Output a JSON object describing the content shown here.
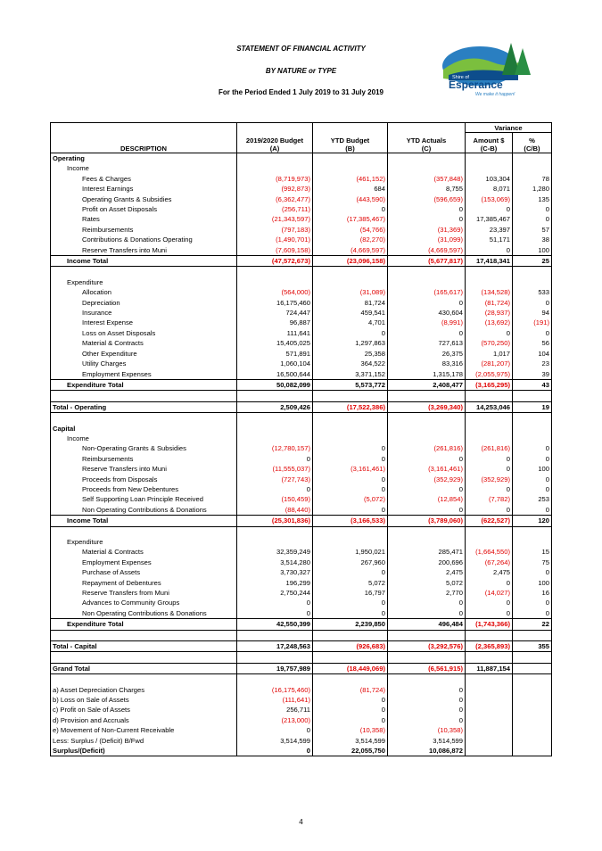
{
  "header": {
    "title": "STATEMENT OF FINANCIAL ACTIVITY",
    "subtitle": "BY NATURE or TYPE",
    "period": "For the Period Ended 1 July 2019 to 31 July 2019"
  },
  "logo": {
    "line1": "Shire of",
    "line2": "Esperance",
    "tagline": "We make it happen!"
  },
  "table": {
    "columns": {
      "variance": "Variance",
      "description": "DESCRIPTION",
      "budget": [
        "2019/2020 Budget",
        "(A)"
      ],
      "ytd_budget": [
        "YTD Budget",
        "(B)"
      ],
      "ytd_actuals": [
        "YTD Actuals",
        "(C)"
      ],
      "amount": [
        "Amount $",
        "(C-B)"
      ],
      "percent": [
        "%",
        "(C/B)"
      ]
    },
    "rows": [
      [
        "Operating"
      ],
      [
        "Income"
      ],
      [
        "Fees & Charges",
        "(8,719,973)",
        "(461,152)",
        "(357,848)",
        "103,304",
        "78"
      ],
      [
        "Interest Earnings",
        "(992,873)",
        "684",
        "8,755",
        "8,071",
        "1,280"
      ],
      [
        "Operating Grants & Subsidies",
        "(6,362,477)",
        "(443,590)",
        "(596,659)",
        "(153,069)",
        "135"
      ],
      [
        "Profit on Asset Disposals",
        "(256,711)",
        "0",
        "0",
        "0",
        "0"
      ],
      [
        "Rates",
        "(21,343,597)",
        "(17,385,467)",
        "0",
        "17,385,467",
        "0"
      ],
      [
        "Reimbursements",
        "(797,183)",
        "(54,766)",
        "(31,369)",
        "23,397",
        "57"
      ],
      [
        "Contributions & Donations Operating",
        "(1,490,701)",
        "(82,270)",
        "(31,099)",
        "51,171",
        "38"
      ],
      [
        "Reserve Transfers into Muni",
        "(7,609,158)",
        "(4,669,597)",
        "(4,669,597)",
        "0",
        "100"
      ],
      [
        "Income Total",
        "(47,572,673)",
        "(23,096,158)",
        "(5,677,817)",
        "17,418,341",
        "25"
      ],
      [
        "Expenditure"
      ],
      [
        "Allocation",
        "(564,000)",
        "(31,089)",
        "(165,617)",
        "(134,528)",
        "533"
      ],
      [
        "Depreciation",
        "16,175,460",
        "81,724",
        "0",
        "(81,724)",
        "0"
      ],
      [
        "Insurance",
        "724,447",
        "459,541",
        "430,604",
        "(28,937)",
        "94"
      ],
      [
        "Interest Expense",
        "96,887",
        "4,701",
        "(8,991)",
        "(13,692)",
        "(191)"
      ],
      [
        "Loss on Asset Disposals",
        "111,641",
        "0",
        "0",
        "0",
        "0"
      ],
      [
        "Material & Contracts",
        "15,405,025",
        "1,297,863",
        "727,613",
        "(570,250)",
        "56"
      ],
      [
        "Other Expenditure",
        "571,891",
        "25,358",
        "26,375",
        "1,017",
        "104"
      ],
      [
        "Utility Charges",
        "1,060,104",
        "364,522",
        "83,316",
        "(281,207)",
        "23"
      ],
      [
        "Employment Expenses",
        "16,500,644",
        "3,371,152",
        "1,315,178",
        "(2,055,975)",
        "39"
      ],
      [
        "Expenditure Total",
        "50,082,099",
        "5,573,772",
        "2,408,477",
        "(3,165,295)",
        "43"
      ],
      [
        "Total - Operating",
        "2,509,426",
        "(17,522,386)",
        "(3,269,340)",
        "14,253,046",
        "19"
      ],
      [
        "Capital"
      ],
      [
        "Income"
      ],
      [
        "Non-Operating Grants & Subsidies",
        "(12,780,157)",
        "0",
        "(261,816)",
        "(261,816)",
        "0"
      ],
      [
        "Reimbursements",
        "0",
        "0",
        "0",
        "0",
        "0"
      ],
      [
        "Reserve Transfers into Muni",
        "(11,555,037)",
        "(3,161,461)",
        "(3,161,461)",
        "0",
        "100"
      ],
      [
        "Proceeds from Disposals",
        "(727,743)",
        "0",
        "(352,929)",
        "(352,929)",
        "0"
      ],
      [
        "Proceeds from New Debentures",
        "0",
        "0",
        "0",
        "0",
        "0"
      ],
      [
        "Self Supporting Loan Principle Received",
        "(150,459)",
        "(5,072)",
        "(12,854)",
        "(7,782)",
        "253"
      ],
      [
        "Non Operating Contributions & Donations",
        "(88,440)",
        "0",
        "0",
        "0",
        "0"
      ],
      [
        "Income Total",
        "(25,301,836)",
        "(3,166,533)",
        "(3,789,060)",
        "(622,527)",
        "120"
      ],
      [
        "Expenditure"
      ],
      [
        "Material & Contracts",
        "32,359,249",
        "1,950,021",
        "285,471",
        "(1,664,550)",
        "15"
      ],
      [
        "Employment Expenses",
        "3,514,280",
        "267,960",
        "200,696",
        "(67,264)",
        "75"
      ],
      [
        "Purchase of Assets",
        "3,730,327",
        "0",
        "2,475",
        "2,475",
        "0"
      ],
      [
        "Repayment of Debentures",
        "196,299",
        "5,072",
        "5,072",
        "0",
        "100"
      ],
      [
        "Reserve Transfers from Muni",
        "2,750,244",
        "16,797",
        "2,770",
        "(14,027)",
        "16"
      ],
      [
        "Advances to Community Groups",
        "0",
        "0",
        "0",
        "0",
        "0"
      ],
      [
        "Non Operating Contributions & Donations",
        "0",
        "0",
        "0",
        "0",
        "0"
      ],
      [
        "Expenditure Total",
        "42,550,399",
        "2,239,850",
        "496,484",
        "(1,743,366)",
        "22"
      ],
      [
        "Total - Capital",
        "17,248,563",
        "(926,683)",
        "(3,292,576)",
        "(2,365,893)",
        "355"
      ],
      [
        "Grand Total",
        "19,757,989",
        "(18,449,069)",
        "(6,561,915)",
        "11,887,154"
      ],
      [
        "a) Asset Depreciation Charges",
        "(16,175,460)",
        "(81,724)",
        "0"
      ],
      [
        "b) Loss on Sale of Assets",
        "(111,641)",
        "0",
        "0"
      ],
      [
        "c) Profit on Sale of Assets",
        "256,711",
        "0",
        "0"
      ],
      [
        "d) Provision and Accruals",
        "(213,000)",
        "0",
        "0"
      ],
      [
        "e) Movement of Non-Current Receivable",
        "0",
        "(10,358)",
        "(10,358)"
      ],
      [
        "Less: Surplus / (Deficit) B/Fwd",
        "3,514,599",
        "3,514,599",
        "3,514,599"
      ],
      [
        "Surplus/(Deficit)",
        "0",
        "22,055,750",
        "10,086,872"
      ]
    ]
  },
  "footer": {
    "page": "4"
  }
}
